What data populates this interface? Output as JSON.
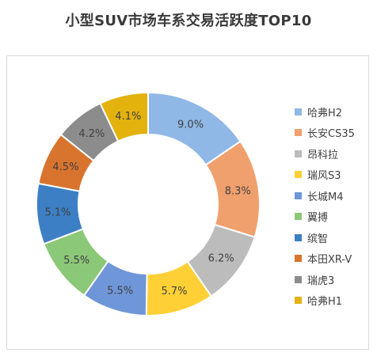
{
  "chart_data": {
    "type": "donut",
    "title": "小型SUV市场车系交易活跃度TOP10",
    "unit": "%",
    "slices": [
      {
        "label": "哈弗H2",
        "value": 9.0,
        "display": "9.0%",
        "color": "#8fb8e6"
      },
      {
        "label": "长安CS35",
        "value": 8.3,
        "display": "8.3%",
        "color": "#f0a06d"
      },
      {
        "label": "昂科拉",
        "value": 6.2,
        "display": "6.2%",
        "color": "#bcbcbc"
      },
      {
        "label": "瑞风S3",
        "value": 5.7,
        "display": "5.7%",
        "color": "#ffd036"
      },
      {
        "label": "长城M4",
        "value": 5.5,
        "display": "5.5%",
        "color": "#6f96d8"
      },
      {
        "label": "翼搏",
        "value": 5.5,
        "display": "5.5%",
        "color": "#8bc877"
      },
      {
        "label": "缤智",
        "value": 5.1,
        "display": "5.1%",
        "color": "#3c7fc4"
      },
      {
        "label": "本田XR-V",
        "value": 4.5,
        "display": "4.5%",
        "color": "#d9742e"
      },
      {
        "label": "瑞虎3",
        "value": 4.2,
        "display": "4.2%",
        "color": "#8c8c8c"
      },
      {
        "label": "哈弗H1",
        "value": 4.1,
        "display": "4.1%",
        "color": "#e3b20c"
      }
    ],
    "legend_position": "right"
  }
}
